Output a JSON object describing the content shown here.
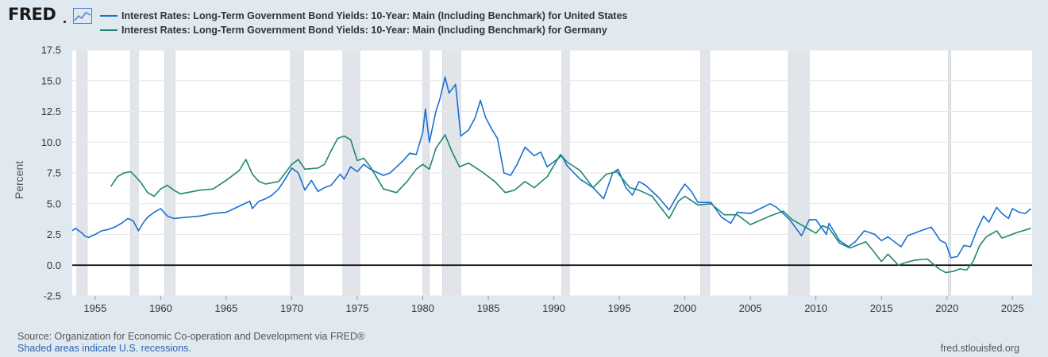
{
  "header": {
    "logo_text": "FRED"
  },
  "footer": {
    "source": "Source: Organization for Economic Co-operation and Development via FRED®",
    "shading_note": "Shaded areas indicate U.S. recessions.",
    "site": "fred.stlouisfed.org"
  },
  "chart_data": {
    "type": "line",
    "title": "",
    "xlabel": "",
    "ylabel": "Percent",
    "xlim": [
      1953.25,
      2026.5
    ],
    "ylim": [
      -2.5,
      17.5
    ],
    "x_ticks": [
      1955,
      1960,
      1965,
      1970,
      1975,
      1980,
      1985,
      1990,
      1995,
      2000,
      2005,
      2010,
      2015,
      2020,
      2025
    ],
    "y_ticks": [
      -2.5,
      0.0,
      2.5,
      5.0,
      7.5,
      10.0,
      12.5,
      15.0,
      17.5
    ],
    "y_tick_labels": [
      "-2.5",
      "0.0",
      "2.5",
      "5.0",
      "7.5",
      "10.0",
      "12.5",
      "15.0",
      "17.5"
    ],
    "grid": "horizontal",
    "zero_line": true,
    "legend_position": "top",
    "recessions": [
      [
        1953.6,
        1954.4
      ],
      [
        1957.7,
        1958.3
      ],
      [
        1960.3,
        1961.1
      ],
      [
        1969.9,
        1970.9
      ],
      [
        1973.9,
        1975.2
      ],
      [
        1980.0,
        1980.5
      ],
      [
        1981.5,
        1982.9
      ],
      [
        1990.6,
        1991.2
      ],
      [
        2001.2,
        2001.9
      ],
      [
        2007.9,
        2009.5
      ],
      [
        2020.1,
        2020.3
      ]
    ],
    "series": [
      {
        "name": "Interest Rates: Long-Term Government Bond Yields: 10-Year: Main (Including Benchmark) for United States",
        "color": "#1a6fd3",
        "points": [
          [
            1953.25,
            2.8
          ],
          [
            1953.5,
            3.0
          ],
          [
            1953.75,
            2.8
          ],
          [
            1954.0,
            2.6
          ],
          [
            1954.25,
            2.35
          ],
          [
            1954.5,
            2.25
          ],
          [
            1955.0,
            2.5
          ],
          [
            1955.5,
            2.8
          ],
          [
            1956.0,
            2.9
          ],
          [
            1956.5,
            3.1
          ],
          [
            1957.0,
            3.4
          ],
          [
            1957.5,
            3.8
          ],
          [
            1957.9,
            3.6
          ],
          [
            1958.3,
            2.8
          ],
          [
            1958.7,
            3.5
          ],
          [
            1959.0,
            3.9
          ],
          [
            1959.5,
            4.3
          ],
          [
            1960.0,
            4.6
          ],
          [
            1960.5,
            4.0
          ],
          [
            1961.0,
            3.8
          ],
          [
            1962.0,
            3.9
          ],
          [
            1963.0,
            4.0
          ],
          [
            1964.0,
            4.2
          ],
          [
            1965.0,
            4.3
          ],
          [
            1966.0,
            4.8
          ],
          [
            1966.8,
            5.2
          ],
          [
            1967.0,
            4.6
          ],
          [
            1967.5,
            5.2
          ],
          [
            1968.0,
            5.4
          ],
          [
            1968.5,
            5.7
          ],
          [
            1969.0,
            6.2
          ],
          [
            1969.5,
            7.0
          ],
          [
            1970.0,
            7.9
          ],
          [
            1970.5,
            7.5
          ],
          [
            1971.0,
            6.1
          ],
          [
            1971.5,
            6.9
          ],
          [
            1972.0,
            6.0
          ],
          [
            1972.5,
            6.3
          ],
          [
            1973.0,
            6.5
          ],
          [
            1973.7,
            7.4
          ],
          [
            1974.0,
            7.0
          ],
          [
            1974.5,
            8.0
          ],
          [
            1975.0,
            7.6
          ],
          [
            1975.5,
            8.2
          ],
          [
            1976.0,
            7.8
          ],
          [
            1977.0,
            7.3
          ],
          [
            1977.5,
            7.5
          ],
          [
            1978.0,
            8.0
          ],
          [
            1978.5,
            8.5
          ],
          [
            1979.0,
            9.1
          ],
          [
            1979.5,
            9.0
          ],
          [
            1980.0,
            10.8
          ],
          [
            1980.2,
            12.7
          ],
          [
            1980.5,
            10.0
          ],
          [
            1981.0,
            12.5
          ],
          [
            1981.3,
            13.5
          ],
          [
            1981.7,
            15.3
          ],
          [
            1982.0,
            14.0
          ],
          [
            1982.5,
            14.7
          ],
          [
            1982.9,
            10.5
          ],
          [
            1983.5,
            11.0
          ],
          [
            1984.0,
            12.0
          ],
          [
            1984.4,
            13.4
          ],
          [
            1984.8,
            12.0
          ],
          [
            1985.3,
            11.0
          ],
          [
            1985.7,
            10.3
          ],
          [
            1986.2,
            7.5
          ],
          [
            1986.7,
            7.3
          ],
          [
            1987.2,
            8.2
          ],
          [
            1987.8,
            9.6
          ],
          [
            1988.5,
            8.9
          ],
          [
            1989.0,
            9.2
          ],
          [
            1989.5,
            8.0
          ],
          [
            1990.0,
            8.4
          ],
          [
            1990.6,
            8.9
          ],
          [
            1991.0,
            8.1
          ],
          [
            1992.0,
            7.0
          ],
          [
            1993.0,
            6.3
          ],
          [
            1993.8,
            5.4
          ],
          [
            1994.5,
            7.5
          ],
          [
            1994.9,
            7.8
          ],
          [
            1995.5,
            6.3
          ],
          [
            1996.0,
            5.7
          ],
          [
            1996.5,
            6.8
          ],
          [
            1997.0,
            6.5
          ],
          [
            1998.0,
            5.5
          ],
          [
            1998.8,
            4.5
          ],
          [
            1999.5,
            5.8
          ],
          [
            2000.0,
            6.6
          ],
          [
            2000.5,
            6.0
          ],
          [
            2001.0,
            5.1
          ],
          [
            2002.0,
            5.1
          ],
          [
            2002.8,
            3.9
          ],
          [
            2003.5,
            3.4
          ],
          [
            2004.0,
            4.3
          ],
          [
            2005.0,
            4.2
          ],
          [
            2006.5,
            5.0
          ],
          [
            2007.0,
            4.7
          ],
          [
            2008.0,
            3.7
          ],
          [
            2008.9,
            2.4
          ],
          [
            2009.5,
            3.7
          ],
          [
            2010.0,
            3.7
          ],
          [
            2010.8,
            2.5
          ],
          [
            2011.0,
            3.4
          ],
          [
            2011.8,
            2.0
          ],
          [
            2012.5,
            1.5
          ],
          [
            2013.0,
            1.9
          ],
          [
            2013.7,
            2.8
          ],
          [
            2014.5,
            2.5
          ],
          [
            2015.0,
            2.0
          ],
          [
            2015.5,
            2.3
          ],
          [
            2016.5,
            1.5
          ],
          [
            2017.0,
            2.4
          ],
          [
            2018.0,
            2.8
          ],
          [
            2018.8,
            3.1
          ],
          [
            2019.5,
            2.0
          ],
          [
            2019.9,
            1.8
          ],
          [
            2020.3,
            0.6
          ],
          [
            2020.8,
            0.7
          ],
          [
            2021.3,
            1.6
          ],
          [
            2021.8,
            1.5
          ],
          [
            2022.3,
            2.9
          ],
          [
            2022.8,
            4.0
          ],
          [
            2023.2,
            3.5
          ],
          [
            2023.8,
            4.7
          ],
          [
            2024.2,
            4.2
          ],
          [
            2024.7,
            3.8
          ],
          [
            2025.0,
            4.6
          ],
          [
            2025.5,
            4.3
          ],
          [
            2026.0,
            4.2
          ],
          [
            2026.4,
            4.6
          ]
        ]
      },
      {
        "name": "Interest Rates: Long-Term Government Bond Yields: 10-Year: Main (Including Benchmark) for Germany",
        "color": "#1e8770",
        "points": [
          [
            1956.2,
            6.4
          ],
          [
            1956.7,
            7.2
          ],
          [
            1957.2,
            7.5
          ],
          [
            1957.7,
            7.6
          ],
          [
            1958.0,
            7.3
          ],
          [
            1958.5,
            6.7
          ],
          [
            1959.0,
            5.9
          ],
          [
            1959.5,
            5.6
          ],
          [
            1960.0,
            6.2
          ],
          [
            1960.5,
            6.5
          ],
          [
            1961.0,
            6.1
          ],
          [
            1961.5,
            5.8
          ],
          [
            1962.0,
            5.9
          ],
          [
            1963.0,
            6.1
          ],
          [
            1964.0,
            6.2
          ],
          [
            1965.0,
            6.9
          ],
          [
            1966.0,
            7.7
          ],
          [
            1966.5,
            8.6
          ],
          [
            1967.0,
            7.4
          ],
          [
            1967.5,
            6.8
          ],
          [
            1968.0,
            6.6
          ],
          [
            1969.0,
            6.8
          ],
          [
            1970.0,
            8.2
          ],
          [
            1970.5,
            8.6
          ],
          [
            1971.0,
            7.8
          ],
          [
            1972.0,
            7.9
          ],
          [
            1972.5,
            8.2
          ],
          [
            1973.0,
            9.3
          ],
          [
            1973.5,
            10.3
          ],
          [
            1974.0,
            10.5
          ],
          [
            1974.5,
            10.2
          ],
          [
            1975.0,
            8.5
          ],
          [
            1975.5,
            8.7
          ],
          [
            1976.0,
            8.0
          ],
          [
            1977.0,
            6.2
          ],
          [
            1978.0,
            5.9
          ],
          [
            1978.8,
            6.8
          ],
          [
            1979.5,
            7.8
          ],
          [
            1980.0,
            8.2
          ],
          [
            1980.5,
            7.8
          ],
          [
            1981.0,
            9.5
          ],
          [
            1981.7,
            10.6
          ],
          [
            1982.2,
            9.3
          ],
          [
            1982.8,
            8.0
          ],
          [
            1983.5,
            8.3
          ],
          [
            1984.5,
            7.6
          ],
          [
            1985.5,
            6.8
          ],
          [
            1986.3,
            5.9
          ],
          [
            1987.0,
            6.1
          ],
          [
            1987.8,
            6.8
          ],
          [
            1988.5,
            6.3
          ],
          [
            1989.5,
            7.2
          ],
          [
            1990.5,
            9.0
          ],
          [
            1991.0,
            8.4
          ],
          [
            1992.0,
            7.7
          ],
          [
            1993.0,
            6.3
          ],
          [
            1994.0,
            7.4
          ],
          [
            1994.8,
            7.6
          ],
          [
            1995.8,
            6.3
          ],
          [
            1996.5,
            6.1
          ],
          [
            1997.5,
            5.6
          ],
          [
            1998.8,
            3.8
          ],
          [
            1999.5,
            5.2
          ],
          [
            2000.0,
            5.6
          ],
          [
            2001.0,
            4.9
          ],
          [
            2002.0,
            5.0
          ],
          [
            2003.0,
            4.1
          ],
          [
            2004.0,
            4.1
          ],
          [
            2005.0,
            3.3
          ],
          [
            2006.5,
            4.0
          ],
          [
            2007.5,
            4.4
          ],
          [
            2008.2,
            3.7
          ],
          [
            2009.0,
            3.2
          ],
          [
            2010.0,
            2.6
          ],
          [
            2010.5,
            3.2
          ],
          [
            2011.0,
            3.0
          ],
          [
            2011.8,
            1.8
          ],
          [
            2012.6,
            1.4
          ],
          [
            2013.8,
            1.9
          ],
          [
            2014.5,
            1.0
          ],
          [
            2015.0,
            0.3
          ],
          [
            2015.5,
            0.9
          ],
          [
            2016.3,
            0.0
          ],
          [
            2016.8,
            0.2
          ],
          [
            2017.5,
            0.4
          ],
          [
            2018.5,
            0.5
          ],
          [
            2019.4,
            -0.3
          ],
          [
            2019.9,
            -0.6
          ],
          [
            2020.5,
            -0.5
          ],
          [
            2021.0,
            -0.3
          ],
          [
            2021.5,
            -0.4
          ],
          [
            2022.0,
            0.3
          ],
          [
            2022.5,
            1.6
          ],
          [
            2023.0,
            2.3
          ],
          [
            2023.8,
            2.8
          ],
          [
            2024.2,
            2.2
          ],
          [
            2024.7,
            2.4
          ],
          [
            2025.2,
            2.6
          ],
          [
            2025.8,
            2.8
          ],
          [
            2026.4,
            3.0
          ]
        ]
      }
    ]
  }
}
